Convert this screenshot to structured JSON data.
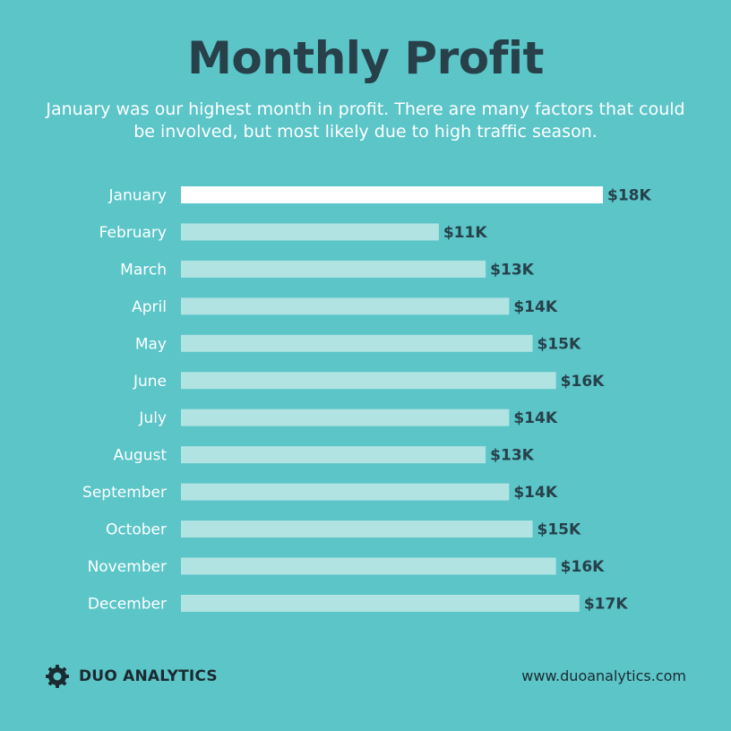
{
  "title": "Monthly Profit",
  "subtitle": "January was our highest month in profit. There are many factors that could be involved, but most likely due to high traffic season.",
  "chart_data": {
    "type": "bar",
    "orientation": "horizontal",
    "categories": [
      "January",
      "February",
      "March",
      "April",
      "May",
      "June",
      "July",
      "August",
      "September",
      "October",
      "November",
      "December"
    ],
    "values": [
      18,
      11,
      13,
      14,
      15,
      16,
      14,
      13,
      14,
      15,
      16,
      17
    ],
    "value_labels": [
      "$18K",
      "$11K",
      "$13K",
      "$14K",
      "$15K",
      "$16K",
      "$14K",
      "$13K",
      "$14K",
      "$15K",
      "$16K",
      "$17K"
    ],
    "unit": "$K",
    "xlim": [
      0,
      18
    ],
    "highlight_index": 0,
    "highlight_color": "#ffffff",
    "bar_color": "#b1e3e3",
    "grid": false,
    "legend": "none"
  },
  "footer": {
    "brand": "DUO ANALYTICS",
    "logo_icon": "gear-icon",
    "url": "www.duoanalytics.com"
  },
  "colors": {
    "background": "#5bc5c8",
    "title": "#27404a",
    "value_label": "#27404a",
    "category_label": "#ffffff"
  }
}
